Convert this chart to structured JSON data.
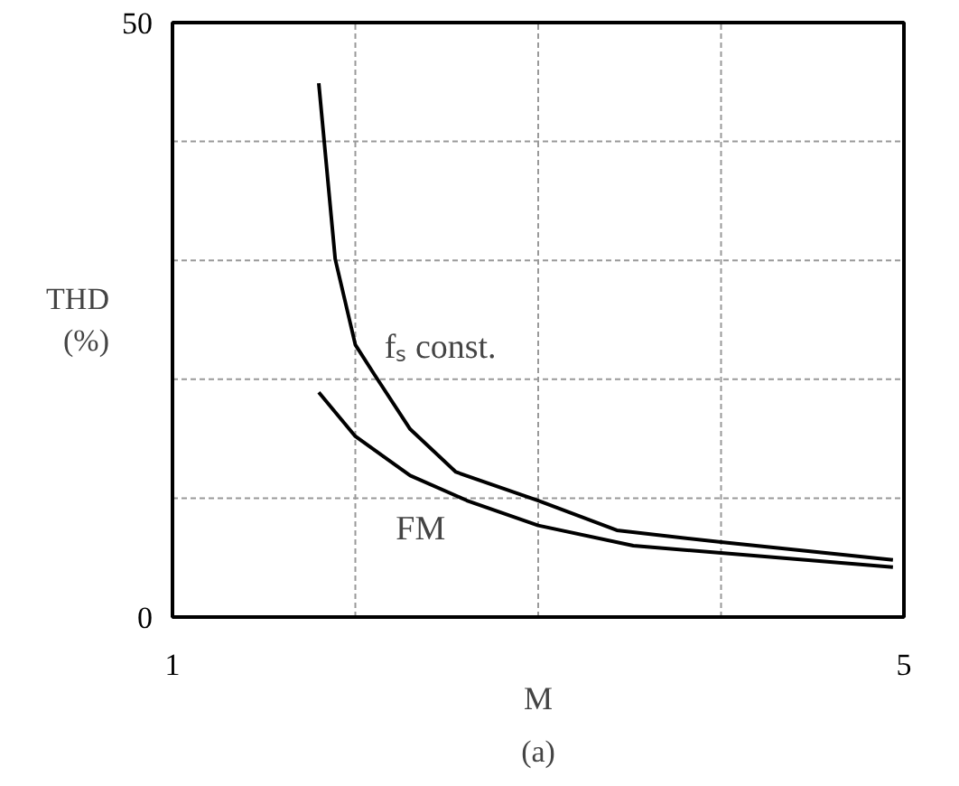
{
  "chart_data": {
    "type": "line",
    "title": "(a)",
    "xlabel": "M",
    "ylabel": "THD\n(%)",
    "xlim": [
      1,
      5
    ],
    "ylim": [
      0,
      50
    ],
    "xticks": [
      1,
      {
        "value": 2,
        "label": null
      },
      {
        "value": 3,
        "label": null
      },
      {
        "value": 4,
        "label": null
      },
      5
    ],
    "yticks": [
      0,
      {
        "value": 10,
        "label": null
      },
      {
        "value": 20,
        "label": null
      },
      {
        "value": 30,
        "label": null
      },
      {
        "value": 40,
        "label": null
      },
      50
    ],
    "grid": true,
    "marker": "none",
    "line_style": "solid",
    "series": [
      {
        "name": "fₛ const.",
        "color": "#000000",
        "x": [
          1.8,
          1.89,
          2.0,
          2.1,
          2.3,
          2.55,
          3.0,
          3.43,
          4.0,
          4.94
        ],
        "values": [
          44.9,
          30.1,
          22.9,
          20.5,
          15.8,
          12.2,
          9.8,
          7.3,
          6.3,
          4.8
        ]
      },
      {
        "name": "FM",
        "color": "#000000",
        "x": [
          1.8,
          2.0,
          2.3,
          2.61,
          3.0,
          3.52,
          4.0,
          4.94
        ],
        "values": [
          18.9,
          15.2,
          11.9,
          9.8,
          7.7,
          6.0,
          5.4,
          4.2
        ]
      }
    ]
  }
}
